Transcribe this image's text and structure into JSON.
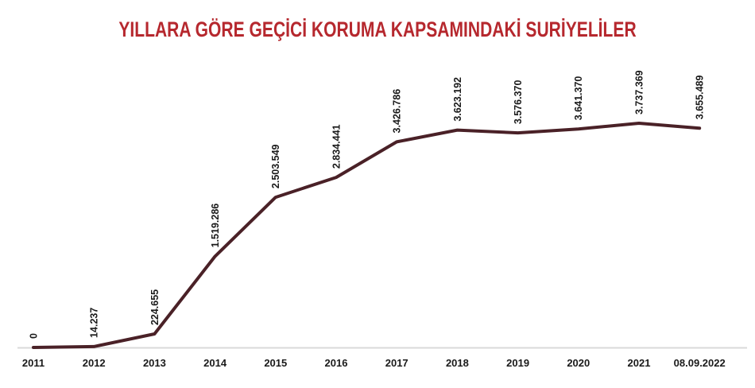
{
  "chart_data": {
    "type": "line",
    "title": "YILLARA GÖRE GEÇİCİ KORUMA KAPSAMINDAKİ SURİYELİLER",
    "categories": [
      "2011",
      "2012",
      "2013",
      "2014",
      "2015",
      "2016",
      "2017",
      "2018",
      "2019",
      "2020",
      "2021",
      "08.09.2022"
    ],
    "values": [
      0,
      14237,
      224655,
      1519286,
      2503549,
      2834441,
      3426786,
      3623192,
      3576370,
      3641370,
      3737369,
      3655489
    ],
    "value_labels": [
      "0",
      "14.237",
      "224.655",
      "1.519.286",
      "2.503.549",
      "2.834.441",
      "3.426.786",
      "3.623.192",
      "3.576.370",
      "3.641.370",
      "3.737.369",
      "3.655.489"
    ],
    "xlabel": "",
    "ylabel": "",
    "ylim": [
      0,
      3737369
    ],
    "grid": false,
    "legend": "none",
    "colors": {
      "title": "#b6282e",
      "line": "#4a2127",
      "value_label": "#1a1a1a",
      "tick_label": "#1a1a1a",
      "axis_line": "#d9d9d9"
    }
  }
}
